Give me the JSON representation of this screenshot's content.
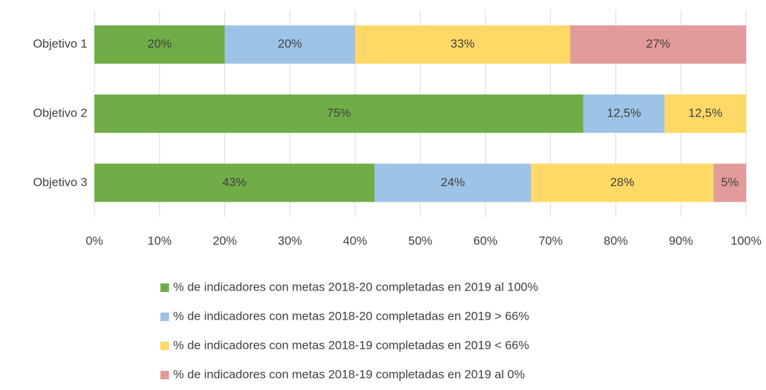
{
  "chart_data": {
    "type": "stacked_barh",
    "categories": [
      "Objetivo 1",
      "Objetivo 2",
      "Objetivo 3"
    ],
    "series": [
      {
        "name": "% de indicadores con metas 2018-20 completadas en 2019 al 100%",
        "color": "#70ad47",
        "values": [
          20,
          75,
          43
        ],
        "value_labels": [
          "20%",
          "75%",
          "43%"
        ]
      },
      {
        "name": "% de indicadores con metas 2018-20 completadas en 2019 > 66%",
        "color": "#9dc3e6",
        "values": [
          20,
          12.5,
          24
        ],
        "value_labels": [
          "20%",
          "12,5%",
          "24%"
        ]
      },
      {
        "name": "% de indicadores con metas 2018-19 completadas en 2019  < 66%",
        "color": "#ffd966",
        "values": [
          33,
          12.5,
          28
        ],
        "value_labels": [
          "33%",
          "12,5%",
          "28%"
        ]
      },
      {
        "name": "% de indicadores con metas 2018-19 completadas en 2019 al 0%",
        "color": "#e39a9a",
        "values": [
          27,
          null,
          5
        ],
        "value_labels": [
          "27%",
          null,
          "5%"
        ]
      }
    ],
    "xlim": [
      0,
      100
    ],
    "xticks": [
      {
        "value": 0,
        "label": "0%"
      },
      {
        "value": 10,
        "label": "10%"
      },
      {
        "value": 20,
        "label": "20%"
      },
      {
        "value": 30,
        "label": "30%"
      },
      {
        "value": 40,
        "label": "40%"
      },
      {
        "value": 50,
        "label": "50%"
      },
      {
        "value": 60,
        "label": "60%"
      },
      {
        "value": 70,
        "label": "70%"
      },
      {
        "value": 80,
        "label": "80%"
      },
      {
        "value": 90,
        "label": "90%"
      },
      {
        "value": 100,
        "label": "100%"
      }
    ],
    "grid": true,
    "legend": "bottom"
  }
}
